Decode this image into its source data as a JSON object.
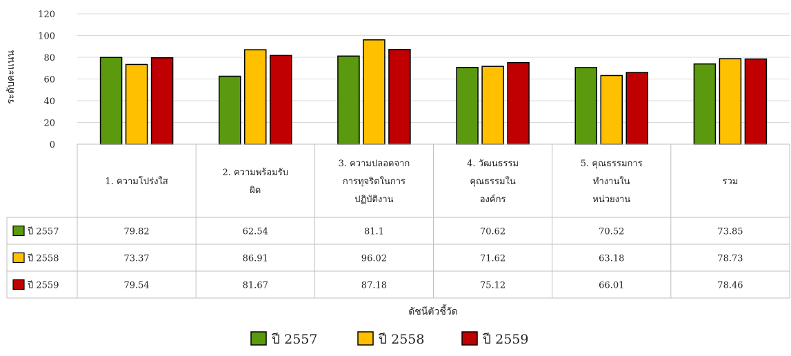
{
  "chart_data": {
    "type": "bar",
    "ylabel": "ระดับคะแนน",
    "xlabel": "ดัชนีตัวชี้วัด",
    "ylim": [
      0,
      120
    ],
    "yticks": [
      0,
      20,
      40,
      60,
      80,
      100,
      120
    ],
    "grid": true,
    "legend_position": "bottom",
    "categories": [
      [
        "1. ความโปร่งใส"
      ],
      [
        "2. ความพร้อมรับ",
        "ผิด"
      ],
      [
        "3. ความปลอดจาก",
        "การทุจริตในการ",
        "ปฏิบัติงาน"
      ],
      [
        "4. วัฒนธรรม",
        "คุณธรรมใน",
        "องค์กร"
      ],
      [
        "5. คุณธรรมการ",
        "ทำงานใน",
        "หน่วยงาน"
      ],
      [
        "รวม"
      ]
    ],
    "series": [
      {
        "name": "ปี 2557",
        "color": "#5b9a0e",
        "values": [
          79.82,
          62.54,
          81.1,
          70.62,
          70.52,
          73.85
        ]
      },
      {
        "name": "ปี 2558",
        "color": "#ffc000",
        "values": [
          73.37,
          86.91,
          96.02,
          71.62,
          63.18,
          78.73
        ]
      },
      {
        "name": "ปี 2559",
        "color": "#c00000",
        "values": [
          79.54,
          81.67,
          87.18,
          75.12,
          66.01,
          78.46
        ]
      }
    ],
    "table_values": [
      [
        "79.82",
        "62.54",
        "81.1",
        "70.62",
        "70.52",
        "73.85"
      ],
      [
        "73.37",
        "86.91",
        "96.02",
        "71.62",
        "63.18",
        "78.73"
      ],
      [
        "79.54",
        "81.67",
        "87.18",
        "75.12",
        "66.01",
        "78.46"
      ]
    ]
  }
}
